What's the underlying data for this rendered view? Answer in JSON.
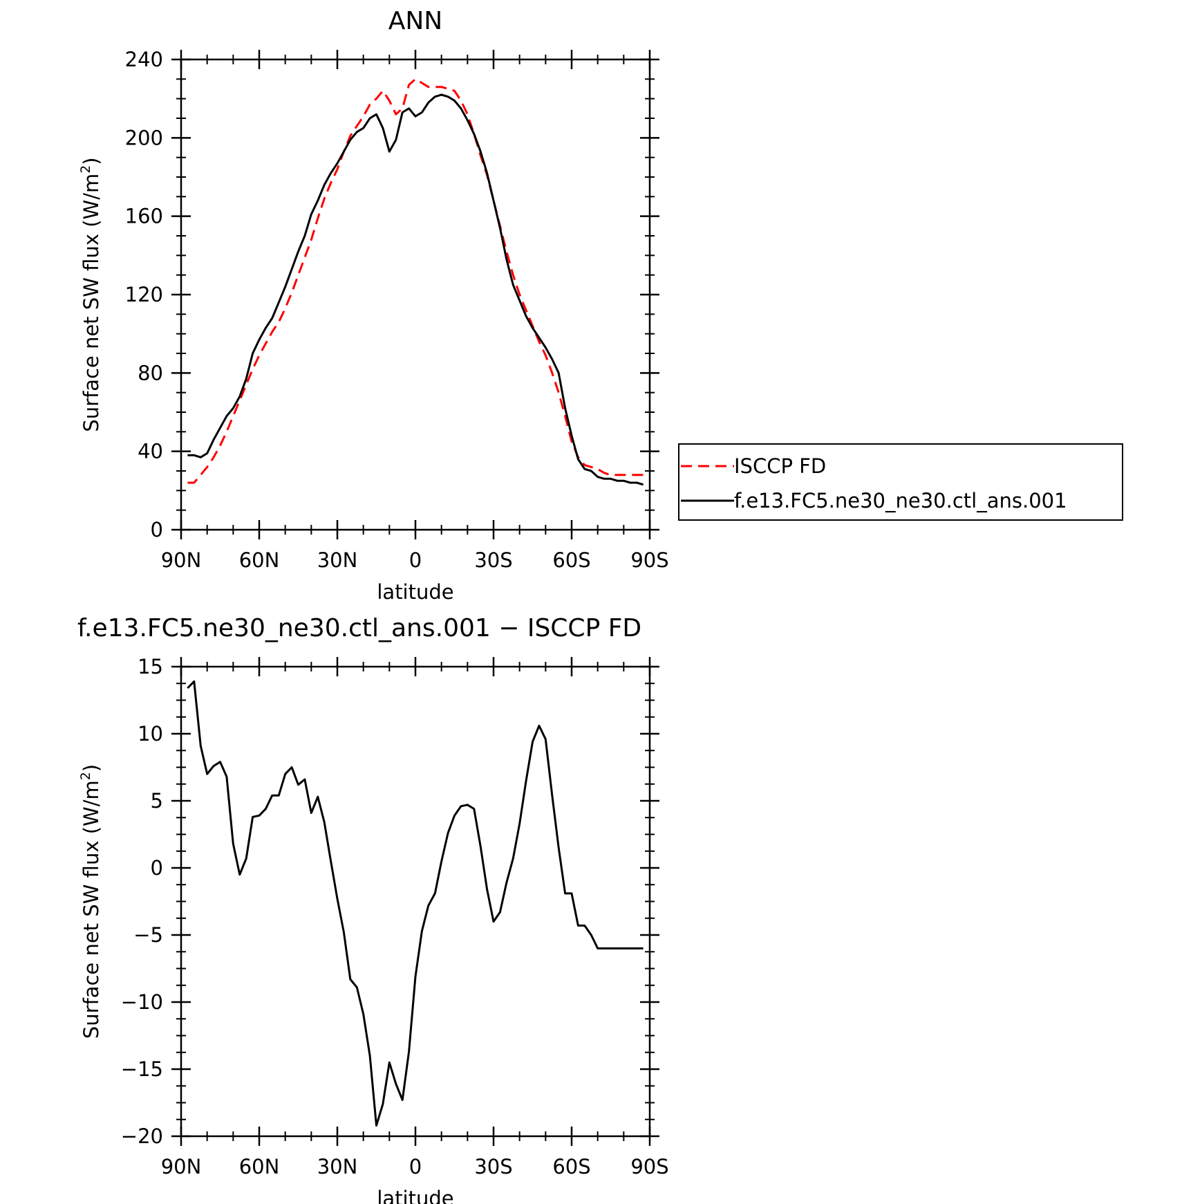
{
  "chart_data": [
    {
      "type": "line",
      "title": "ANN",
      "xlabel": "latitude",
      "ylabel": "Surface net SW flux (W/m",
      "ylabel_sup": "2",
      "ylabel_close": ")",
      "ylim": [
        0,
        240
      ],
      "xlim": [
        90,
        -90
      ],
      "y_ticks": [
        0,
        40,
        80,
        120,
        160,
        200,
        240
      ],
      "y_tick_labels": [
        "0",
        "40",
        "80",
        "120",
        "160",
        "200",
        "240"
      ],
      "x_ticks": [
        90,
        60,
        30,
        0,
        -30,
        -60,
        -90
      ],
      "x_tick_labels": [
        "90N",
        "60N",
        "30N",
        "0",
        "30S",
        "60S",
        "90S"
      ],
      "legend_position": "right",
      "series": [
        {
          "name": "ISCCP FD",
          "color": "#ff0000",
          "dash": "dashed",
          "x": [
            87.5,
            85,
            82.5,
            80,
            77.5,
            75,
            72.5,
            70,
            67.5,
            65,
            62.5,
            60,
            57.5,
            55,
            52.5,
            50,
            47.5,
            45,
            42.5,
            40,
            37.5,
            35,
            32.5,
            30,
            27.5,
            25,
            22.5,
            20,
            17.5,
            15,
            12.5,
            10,
            7.5,
            5,
            2.5,
            0,
            -2.5,
            -5,
            -7.5,
            -10,
            -12.5,
            -15,
            -17.5,
            -20,
            -22.5,
            -25,
            -27.5,
            -30,
            -32.5,
            -35,
            -37.5,
            -40,
            -42.5,
            -45,
            -47.5,
            -50,
            -52.5,
            -55,
            -57.5,
            -60,
            -62.5,
            -65,
            -67.5,
            -70,
            -72.5,
            -75,
            -77.5,
            -80,
            -82.5,
            -85,
            -87.5
          ],
          "y": [
            24,
            24,
            28,
            32,
            37,
            43,
            50,
            58,
            66,
            74,
            82,
            89,
            95,
            101,
            106,
            113,
            121,
            130,
            139,
            148,
            159,
            169,
            177,
            184,
            193,
            201,
            206,
            211,
            217,
            220,
            224,
            219,
            212,
            215,
            227,
            230,
            228,
            226,
            226,
            226,
            225,
            224,
            219,
            212,
            202,
            191,
            181,
            168,
            155,
            142,
            130,
            120,
            112,
            104,
            96,
            89,
            80,
            70,
            58,
            45,
            37,
            33,
            32,
            31,
            29,
            28,
            28,
            28,
            28,
            28,
            28
          ]
        },
        {
          "name": "f.e13.FC5.ne30_ne30.ctl_ans.001",
          "color": "#000000",
          "dash": "solid",
          "x": [
            87.5,
            85,
            82.5,
            80,
            77.5,
            75,
            72.5,
            70,
            67.5,
            65,
            62.5,
            60,
            57.5,
            55,
            52.5,
            50,
            47.5,
            45,
            42.5,
            40,
            37.5,
            35,
            32.5,
            30,
            27.5,
            25,
            22.5,
            20,
            17.5,
            15,
            12.5,
            10,
            7.5,
            5,
            2.5,
            0,
            -2.5,
            -5,
            -7.5,
            -10,
            -12.5,
            -15,
            -17.5,
            -20,
            -22.5,
            -25,
            -27.5,
            -30,
            -32.5,
            -35,
            -37.5,
            -40,
            -42.5,
            -45,
            -47.5,
            -50,
            -52.5,
            -55,
            -57.5,
            -60,
            -62.5,
            -65,
            -67.5,
            -70,
            -72.5,
            -75,
            -77.5,
            -80,
            -82.5,
            -85,
            -87.5
          ],
          "y": [
            38,
            38,
            37,
            39,
            46,
            52,
            58,
            62,
            68,
            77,
            90,
            97,
            103,
            108,
            116,
            124,
            133,
            142,
            150,
            161,
            168,
            176,
            182,
            187,
            193,
            199,
            203,
            205,
            210,
            212,
            205,
            193,
            199,
            213,
            215,
            211,
            213,
            218,
            221,
            222,
            221,
            219,
            215,
            209,
            202,
            193,
            182,
            168,
            154,
            138,
            125,
            117,
            109,
            103,
            98,
            93,
            87,
            80,
            62,
            48,
            36,
            31,
            30,
            27,
            26,
            26,
            25,
            25,
            24,
            24,
            23
          ]
        }
      ]
    },
    {
      "type": "line",
      "title": "f.e13.FC5.ne30_ne30.ctl_ans.001 − ISCCP FD",
      "xlabel": "latitude",
      "ylabel": "Surface net SW flux (W/m",
      "ylabel_sup": "2",
      "ylabel_close": ")",
      "ylim": [
        -20,
        15
      ],
      "xlim": [
        90,
        -90
      ],
      "y_ticks": [
        -20,
        -15,
        -10,
        -5,
        0,
        5,
        10,
        15
      ],
      "y_tick_labels": [
        "−20",
        "−15",
        "−10",
        "−5",
        "0",
        "5",
        "10",
        "15"
      ],
      "x_ticks": [
        90,
        60,
        30,
        0,
        -30,
        -60,
        -90
      ],
      "x_tick_labels": [
        "90N",
        "60N",
        "30N",
        "0",
        "30S",
        "60S",
        "90S"
      ],
      "series": [
        {
          "color": "#000000",
          "dash": "solid",
          "x": [
            87.5,
            85,
            82.5,
            80,
            77.5,
            75,
            72.5,
            70,
            67.5,
            65,
            62.5,
            60,
            57.5,
            55,
            52.5,
            50,
            47.5,
            45,
            42.5,
            40,
            37.5,
            35,
            32.5,
            30,
            27.5,
            25,
            22.5,
            20,
            17.5,
            15,
            12.5,
            10,
            7.5,
            5,
            2.5,
            0,
            -2.5,
            -5,
            -7.5,
            -10,
            -12.5,
            -15,
            -17.5,
            -20,
            -22.5,
            -25,
            -27.5,
            -30,
            -32.5,
            -35,
            -37.5,
            -40,
            -42.5,
            -45,
            -47.5,
            -50,
            -52.5,
            -55,
            -57.5,
            -60,
            -62.5,
            -65,
            -67.5,
            -70,
            -72.5,
            -75,
            -77.5,
            -80,
            -82.5,
            -85,
            -87.5
          ],
          "y": [
            13.4,
            13.9,
            9.1,
            7.0,
            7.6,
            7.9,
            6.8,
            1.8,
            -0.5,
            0.7,
            3.8,
            3.9,
            4.4,
            5.4,
            5.4,
            7.0,
            7.5,
            6.2,
            6.6,
            4.1,
            5.3,
            3.4,
            0.5,
            -2.3,
            -4.8,
            -8.3,
            -8.9,
            -10.9,
            -14.0,
            -19.2,
            -17.6,
            -14.5,
            -16.1,
            -17.3,
            -13.7,
            -8.1,
            -4.7,
            -2.8,
            -1.9,
            0.5,
            2.6,
            3.9,
            4.6,
            4.7,
            4.4,
            1.6,
            -1.6,
            -4.0,
            -3.3,
            -1.1,
            0.7,
            3.3,
            6.5,
            9.4,
            10.6,
            9.6,
            5.4,
            1.5,
            -1.9,
            -1.9,
            -4.3,
            -4.3,
            -5.0,
            -6.0,
            -6.0,
            -6.0,
            -6.0,
            -6.0,
            -6.0,
            -6.0,
            -6.0
          ]
        }
      ]
    }
  ]
}
